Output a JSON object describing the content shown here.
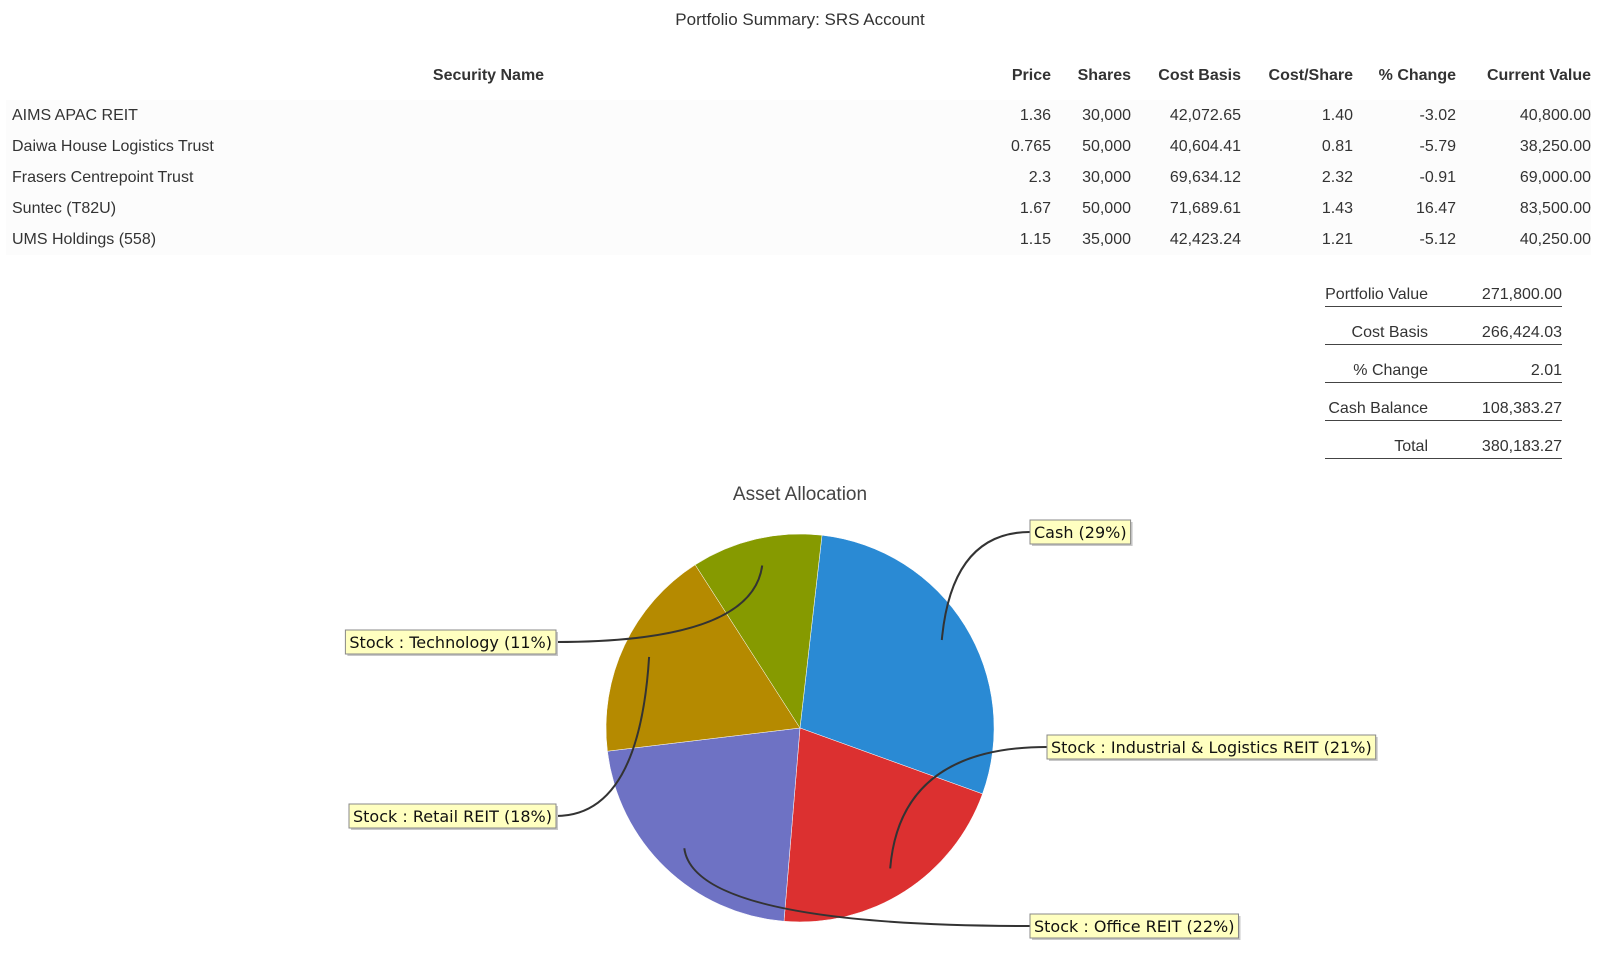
{
  "report": {
    "title": "Portfolio Summary: SRS Account"
  },
  "table": {
    "headers": {
      "security_name": "Security Name",
      "price": "Price",
      "shares": "Shares",
      "cost_basis": "Cost Basis",
      "cost_share": "Cost/Share",
      "pct_change": "% Change",
      "current_value": "Current Value"
    },
    "rows": [
      {
        "name": "AIMS APAC REIT",
        "price": "1.36",
        "shares": "30,000",
        "cost_basis": "42,072.65",
        "cost_share": "1.40",
        "pct_change": "-3.02",
        "current_value": "40,800.00"
      },
      {
        "name": "Daiwa House Logistics Trust",
        "price": "0.765",
        "shares": "50,000",
        "cost_basis": "40,604.41",
        "cost_share": "0.81",
        "pct_change": "-5.79",
        "current_value": "38,250.00"
      },
      {
        "name": "Frasers Centrepoint Trust",
        "price": "2.3",
        "shares": "30,000",
        "cost_basis": "69,634.12",
        "cost_share": "2.32",
        "pct_change": "-0.91",
        "current_value": "69,000.00"
      },
      {
        "name": "Suntec (T82U)",
        "price": "1.67",
        "shares": "50,000",
        "cost_basis": "71,689.61",
        "cost_share": "1.43",
        "pct_change": "16.47",
        "current_value": "83,500.00"
      },
      {
        "name": "UMS Holdings (558)",
        "price": "1.15",
        "shares": "35,000",
        "cost_basis": "42,423.24",
        "cost_share": "1.21",
        "pct_change": "-5.12",
        "current_value": "40,250.00"
      }
    ]
  },
  "summary": {
    "portfolio_value": {
      "label": "Portfolio Value",
      "value": "271,800.00"
    },
    "cost_basis": {
      "label": "Cost Basis",
      "value": "266,424.03"
    },
    "pct_change": {
      "label": "% Change",
      "value": "2.01"
    },
    "cash_balance": {
      "label": "Cash Balance",
      "value": "108,383.27"
    },
    "total": {
      "label": "Total",
      "value": "380,183.27"
    }
  },
  "chart_data": {
    "type": "pie",
    "title": "Asset Allocation",
    "slices": [
      {
        "label": "Cash (29%)",
        "value": 29,
        "color": "#2a8ad4"
      },
      {
        "label": "Stock : Industrial & Logistics REIT (21%)",
        "value": 21,
        "color": "#dc3030"
      },
      {
        "label": "Stock : Office REIT (22%)",
        "value": 22,
        "color": "#6e72c4"
      },
      {
        "label": "Stock : Retail REIT (18%)",
        "value": 18,
        "color": "#b58a00"
      },
      {
        "label": "Stock : Technology (11%)",
        "value": 11,
        "color": "#869a00"
      }
    ]
  }
}
